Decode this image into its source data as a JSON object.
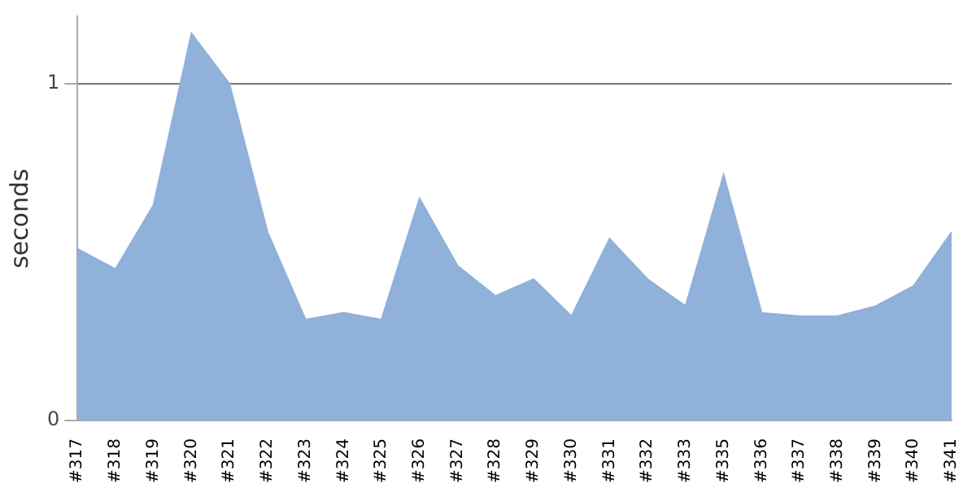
{
  "chart_data": {
    "type": "area",
    "ylabel": "seconds",
    "categories": [
      "#317",
      "#318",
      "#319",
      "#320",
      "#321",
      "#322",
      "#323",
      "#324",
      "#325",
      "#326",
      "#327",
      "#328",
      "#329",
      "#330",
      "#331",
      "#332",
      "#333",
      "#335",
      "#336",
      "#337",
      "#338",
      "#339",
      "#340",
      "#341"
    ],
    "series": [
      {
        "color": "#8fb1da",
        "values": [
          0.51,
          0.45,
          0.64,
          1.15,
          1.0,
          0.56,
          0.3,
          0.32,
          0.3,
          0.66,
          0.46,
          0.37,
          0.42,
          0.31,
          0.54,
          0.42,
          0.34,
          0.73,
          0.32,
          0.31,
          0.31,
          0.34,
          0.4,
          0.56
        ]
      }
    ],
    "ylim": [
      0,
      1.2
    ],
    "yticks": [
      0,
      1
    ],
    "grid": "y",
    "legend": false
  }
}
